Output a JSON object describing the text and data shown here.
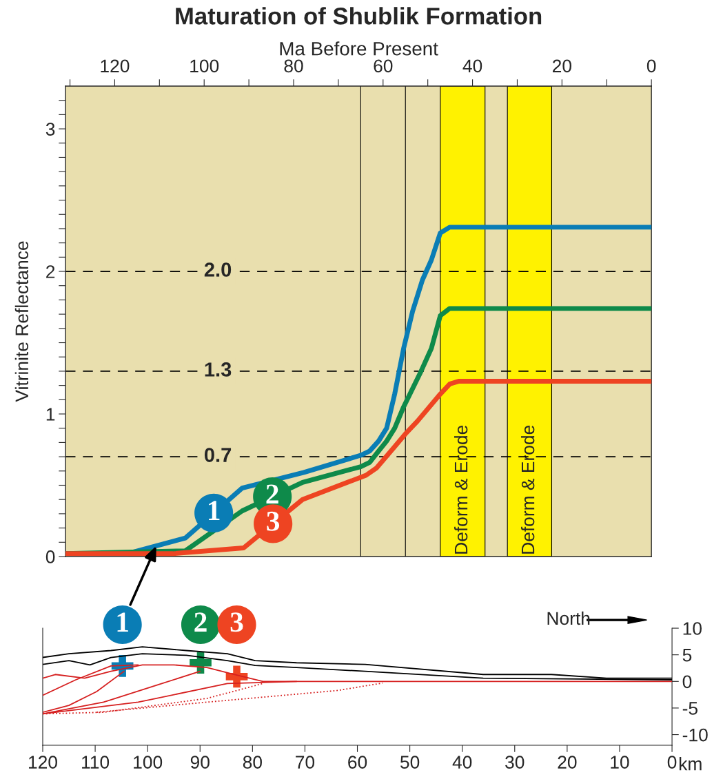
{
  "chart_data": [
    {
      "type": "line",
      "title": "Maturation of Shublik Formation",
      "xlabel": "Ma Before Present",
      "ylabel": "Vitrinite Reflectance",
      "xlim": [
        131,
        0
      ],
      "ylim": [
        0,
        3.3
      ],
      "xticks": [
        0,
        {
          "value": 10,
          "label": null
        },
        20,
        {
          "value": 30,
          "label": null
        },
        40,
        {
          "value": 50,
          "label": null
        },
        60,
        {
          "value": 70,
          "label": null
        },
        80,
        {
          "value": 90,
          "label": null
        },
        100,
        {
          "value": 110,
          "label": null
        },
        120,
        {
          "value": 130,
          "label": null
        }
      ],
      "yticks": [
        0,
        {
          "value": 0.1,
          "label": null
        },
        {
          "value": 0.2,
          "label": null
        },
        {
          "value": 0.3,
          "label": null
        },
        {
          "value": 0.4,
          "label": null
        },
        {
          "value": 0.5,
          "label": null
        },
        {
          "value": 0.6,
          "label": null
        },
        {
          "value": 0.7,
          "label": null
        },
        {
          "value": 0.8,
          "label": null
        },
        {
          "value": 0.9,
          "label": null
        },
        1,
        {
          "value": 1.1,
          "label": null
        },
        {
          "value": 1.2,
          "label": null
        },
        {
          "value": 1.3,
          "label": null
        },
        {
          "value": 1.4,
          "label": null
        },
        {
          "value": 1.5,
          "label": null
        },
        {
          "value": 1.6,
          "label": null
        },
        {
          "value": 1.7,
          "label": null
        },
        {
          "value": 1.8,
          "label": null
        },
        {
          "value": 1.9,
          "label": null
        },
        2,
        {
          "value": 2.1,
          "label": null
        },
        {
          "value": 2.2,
          "label": null
        },
        {
          "value": 2.3,
          "label": null
        },
        {
          "value": 2.4,
          "label": null
        },
        {
          "value": 2.5,
          "label": null
        },
        {
          "value": 2.6,
          "label": null
        },
        {
          "value": 2.7,
          "label": null
        },
        {
          "value": 2.8,
          "label": null
        },
        {
          "value": 2.9,
          "label": null
        },
        3,
        {
          "value": 3.1,
          "label": null
        },
        {
          "value": 3.2,
          "label": null
        }
      ],
      "grid": false,
      "legend": false,
      "marker": "none",
      "line_style": "solid",
      "series": [
        {
          "color": "#0a7db5",
          "x": [
            131,
            117.2,
            104.2,
            91.5,
            77.7,
            65,
            63,
            61,
            59.2,
            57.4,
            55.4,
            53.4,
            51.2,
            49.2,
            47.2,
            45.1,
            0
          ],
          "values": [
            0.02,
            0.02,
            0.13,
            0.48,
            0.59,
            0.71,
            0.74,
            0.81,
            0.9,
            1.14,
            1.46,
            1.72,
            1.94,
            2.08,
            2.27,
            2.31,
            2.31
          ]
        },
        {
          "color": "#0e8a4a",
          "x": [
            131,
            104.2,
            91.5,
            78,
            65,
            63,
            61,
            59.2,
            57.4,
            55.4,
            51.5,
            49.2,
            47.2,
            45.1,
            0
          ],
          "values": [
            0.02,
            0.04,
            0.32,
            0.52,
            0.63,
            0.66,
            0.74,
            0.81,
            0.9,
            1.05,
            1.3,
            1.46,
            1.69,
            1.74,
            1.74
          ]
        },
        {
          "color": "#ee4422",
          "x": [
            131,
            107,
            91.2,
            78,
            63.8,
            61.5,
            57.7,
            55,
            52.3,
            47.2,
            45.1,
            43,
            0
          ],
          "values": [
            0.02,
            0.02,
            0.06,
            0.4,
            0.57,
            0.62,
            0.76,
            0.86,
            0.95,
            1.14,
            1.21,
            1.23,
            1.23
          ]
        }
      ],
      "ref_lines": [
        {
          "axis": "y",
          "value": 0.7,
          "label": "0.7",
          "line_style": "dashed"
        },
        {
          "axis": "y",
          "value": 1.3,
          "label": "1.3",
          "line_style": "dashed"
        },
        {
          "axis": "y",
          "value": 2.0,
          "label": "2.0",
          "line_style": "dashed"
        },
        {
          "axis": "x",
          "value": 65,
          "line_style": "solid"
        },
        {
          "axis": "x",
          "value": 55,
          "line_style": "solid"
        }
      ],
      "bands": [
        {
          "axis": "x",
          "from": 47.2,
          "to": 37.2,
          "label": "Deform & Erode",
          "color": "#fff200"
        },
        {
          "axis": "x",
          "from": 32.2,
          "to": 22.3,
          "label": "Deform & Erode",
          "color": "#fff200"
        }
      ],
      "annotations": [
        "1",
        "2",
        "3"
      ]
    },
    {
      "type": "line",
      "xlabel": "km",
      "xlim": [
        120,
        0
      ],
      "ylim": [
        -12,
        10
      ],
      "xticks": [
        120,
        110,
        100,
        90,
        80,
        70,
        60,
        50,
        40,
        30,
        20,
        10,
        0
      ],
      "yticks": [
        10,
        5,
        0,
        -5,
        -10
      ],
      "grid": false,
      "legend": false,
      "line_style": "solid",
      "series": [
        {
          "color": "#000000",
          "x": [
            120,
            115,
            107,
            101,
            92.6,
            84.8,
            79.5,
            71.6,
            58.5,
            36,
            23,
            12.5,
            0
          ],
          "values": [
            4.5,
            5.2,
            5.8,
            6.5,
            5.8,
            5.2,
            3.9,
            3.5,
            3.2,
            1.3,
            1.3,
            0.6,
            0.6
          ]
        },
        {
          "color": "#000000",
          "x": [
            120,
            115,
            111,
            107,
            101,
            92.6,
            84.8,
            79.5,
            71.6,
            58.5,
            36,
            0
          ],
          "values": [
            3.2,
            3.9,
            3.1,
            4.5,
            5.2,
            4.9,
            3.9,
            3.0,
            2.6,
            1.9,
            0.6,
            0.3
          ]
        },
        {
          "color": "#d62020",
          "x": [
            120,
            117.6,
            112,
            107,
            101,
            95,
            88.7,
            83.4,
            78,
            0
          ],
          "values": [
            0.6,
            1.3,
            0.6,
            1.9,
            3.1,
            3.1,
            2.6,
            1.3,
            0,
            0
          ]
        },
        {
          "color": "#d62020",
          "x": [
            120,
            113.7,
            107,
            101.8
          ],
          "values": [
            -2.6,
            0.3,
            2.9,
            3.1
          ]
        },
        {
          "color": "#d62020",
          "x": [
            120,
            115,
            109.7,
            104.5
          ],
          "values": [
            -5.8,
            -4.5,
            -1.9,
            1.9
          ]
        },
        {
          "color": "#d62020",
          "x": [
            120,
            108.4,
            97.9,
            90
          ],
          "values": [
            -6.1,
            -3.9,
            -0.6,
            1.9
          ]
        },
        {
          "color": "#d62020",
          "x": [
            120,
            101.8,
            84.8,
            71.6
          ],
          "values": [
            -6.1,
            -3.9,
            -0.4,
            0
          ]
        },
        {
          "color": "#d62020",
          "line_style": "dotted",
          "x": [
            120,
            108.4,
            88.7,
            78
          ],
          "values": [
            -6.1,
            -5.8,
            -3.2,
            -0.4
          ]
        },
        {
          "color": "#d62020",
          "line_style": "dotted",
          "x": [
            109.7,
            88.7,
            63.7,
            55.2
          ],
          "values": [
            -5.8,
            -3.9,
            -1.7,
            -0.3
          ]
        },
        {
          "type": "scatter",
          "marker": "cross",
          "colors": [
            "#0a7db5",
            "#0e8a4a",
            "#ee4422"
          ],
          "x": [
            104.8,
            89.9,
            83
          ],
          "values": [
            2.9,
            3.5,
            0.9
          ]
        }
      ],
      "annotations": [
        "1",
        "2",
        "3",
        "North"
      ]
    }
  ]
}
